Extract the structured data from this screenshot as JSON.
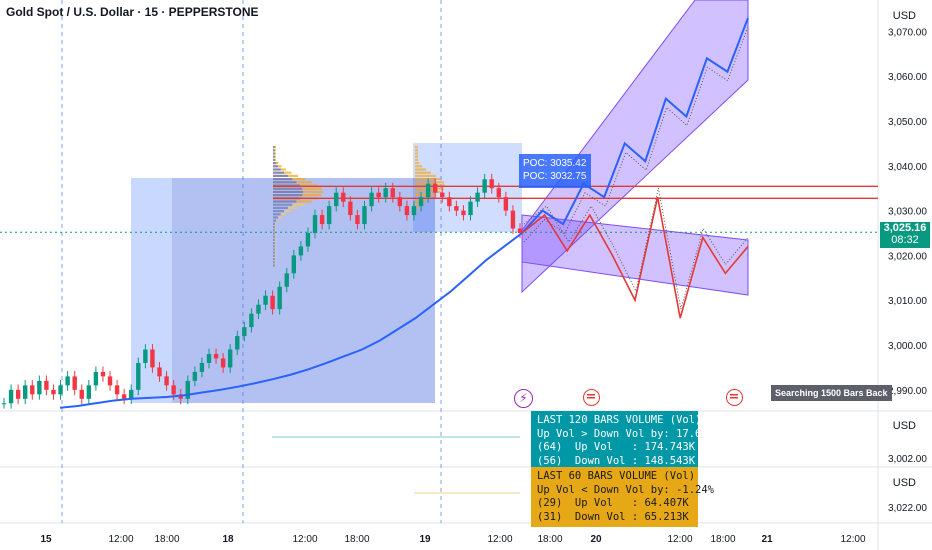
{
  "header": {
    "title": "Gold Spot / U.S. Dollar · 15 · PEPPERSTONE"
  },
  "price_axis": {
    "currency": "USD",
    "currency_pane2": "USD",
    "currency_pane3": "USD"
  },
  "current_price": {
    "value": "3,025.16",
    "countdown": "08:32",
    "color": "#089981"
  },
  "poc": {
    "line1": "POC: 3035.42",
    "line2": "POC: 3032.75"
  },
  "badge": {
    "search": "Searching 1500 Bars Back"
  },
  "icons": {
    "event1": "lightning-icon",
    "event2": "us-flag-icon",
    "event3": "us-flag-icon"
  },
  "vol120": {
    "title": "LAST 120 BARS VOLUME (Vol)",
    "line1": "Up Vol > Down Vol by: 17.64%",
    "line2": "(64)  Up Vol   : 174.743K",
    "line3": "(56)  Down Vol : 148.543K",
    "color": "#0097a7"
  },
  "vol60": {
    "title": "LAST 60 BARS VOLUME (Vol)",
    "line1": "Up Vol < Down Vol by: -1.24%",
    "line2": "(29)  Up Vol   : 64.407K",
    "line3": "(31)  Down Vol : 65.213K",
    "color": "#e6a817"
  },
  "pane2_ticks": [
    "3,002.00"
  ],
  "pane3_ticks": [
    "3,022.00"
  ],
  "chart_data": {
    "type": "line",
    "title": "Gold Spot / U.S. Dollar · 15 · PEPPERSTONE",
    "y_ticks": [
      3070,
      3060,
      3050,
      3040,
      3030,
      3020,
      3010,
      3000,
      2990
    ],
    "y_tick_labels": [
      "3,070.00",
      "3,060.00",
      "3,050.00",
      "3,040.00",
      "3,030.00",
      "3,020.00",
      "3,010.00",
      "3,000.00",
      "2,990.00"
    ],
    "ylim": [
      2985.5,
      3077
    ],
    "x_labels": [
      "15",
      "12:00",
      "18:00",
      "18",
      "12:00",
      "18:00",
      "19",
      "12:00",
      "18:00",
      "20",
      "12:00",
      "18:00",
      "21",
      "12:00"
    ],
    "bold_x_labels": [
      "15",
      "18",
      "19",
      "20",
      "21"
    ],
    "horizontal_levels": [
      3035.42,
      3032.75
    ],
    "last_price": 3025.16,
    "price_series": [
      2987,
      2990,
      2988,
      2991,
      2989,
      2992,
      2990,
      2989,
      2991,
      2993,
      2990,
      2988,
      2991,
      2994,
      2993,
      2991,
      2989,
      2988,
      2990,
      2996,
      2999,
      2995,
      2993,
      2991,
      2989,
      2988,
      2992,
      2994,
      2996,
      2998,
      2997,
      2995,
      2999,
      3002,
      3004,
      3007,
      3009,
      3011,
      3008,
      3013,
      3016,
      3020,
      3022,
      3025,
      3029,
      3027,
      3031,
      3034,
      3032,
      3029,
      3027,
      3031,
      3034,
      3033,
      3035,
      3033,
      3031,
      3029,
      3031,
      3033,
      3036,
      3034,
      3033,
      3031,
      3030,
      3029,
      3032,
      3034,
      3037,
      3035,
      3033,
      3030,
      3026,
      3025
    ],
    "ema_series": [
      2986,
      2986.4,
      2987,
      2987.6,
      2988,
      2988.2,
      2988.4,
      2988.8,
      2989.4,
      2990,
      2990.7,
      2991.5,
      2992.4,
      2993.4,
      2994.6,
      2996,
      2997.5,
      2999,
      3001,
      3003.5,
      3006,
      3009,
      3012,
      3015.5,
      3019,
      3022,
      3025
    ],
    "projection_up": [
      3025,
      3030,
      3027,
      3036,
      3033,
      3045,
      3041,
      3055,
      3051,
      3064,
      3061,
      3073
    ],
    "projection_down": [
      3025,
      3029,
      3021,
      3029,
      3020,
      3010,
      3033,
      3006,
      3024,
      3016,
      3022
    ],
    "volume_profile_poc": [
      3035.42,
      3032.75
    ]
  }
}
